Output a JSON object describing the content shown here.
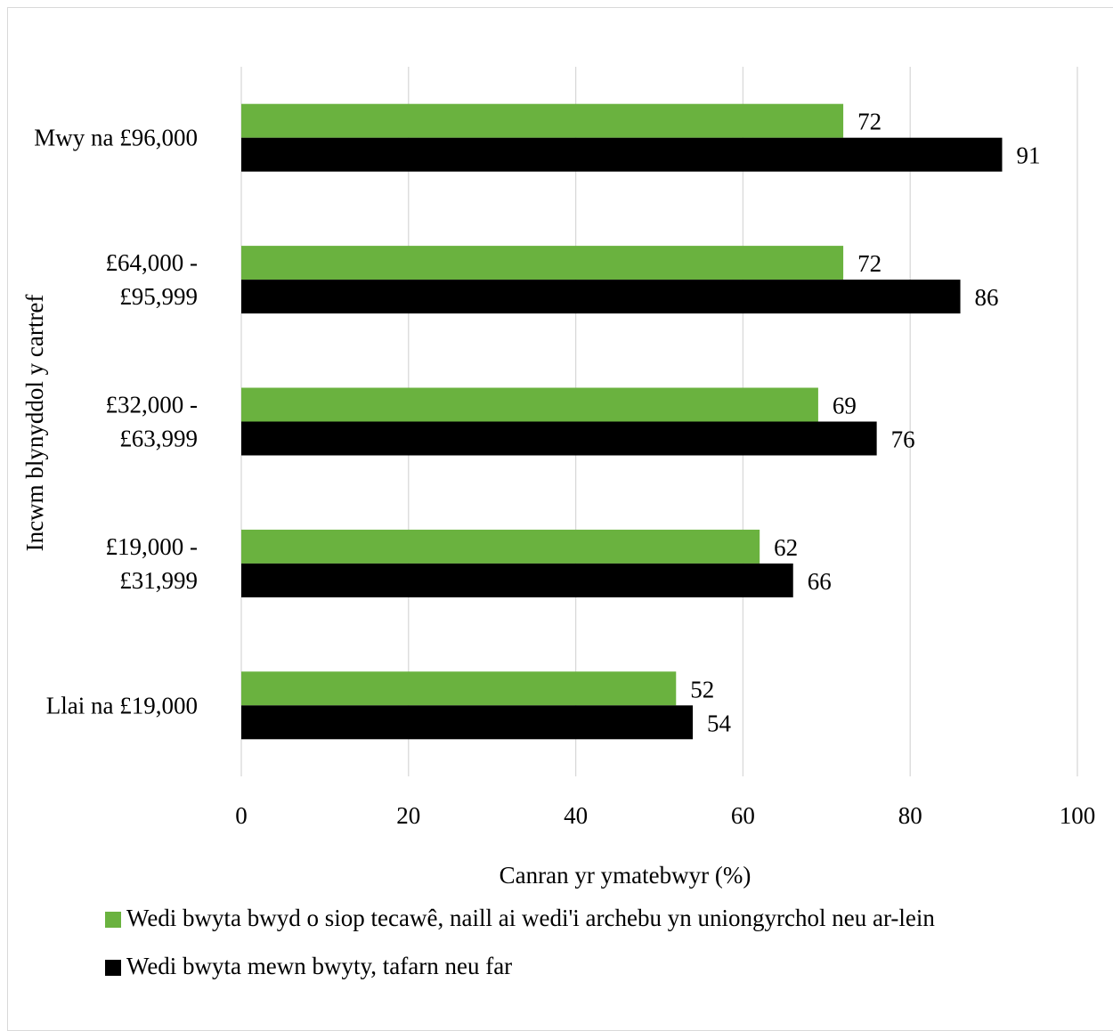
{
  "chart_data": {
    "type": "bar",
    "orientation": "horizontal",
    "categories": [
      "Mwy na £96,000",
      "£64,000 - £95,999",
      "£32,000 - £63,999",
      "£19,000 - £31,999",
      "Llai na £19,000"
    ],
    "category_lines": [
      [
        "Mwy na £96,000"
      ],
      [
        "£64,000 -",
        "£95,999"
      ],
      [
        "£32,000 -",
        "£63,999"
      ],
      [
        "£19,000 -",
        "£31,999"
      ],
      [
        "Llai na £19,000"
      ]
    ],
    "series": [
      {
        "name": "Wedi bwyta bwyd o siop tecawê, naill ai wedi'i archebu yn uniongyrchol neu ar-lein",
        "color": "#6ab23f",
        "values": [
          72,
          72,
          69,
          62,
          52
        ]
      },
      {
        "name": "Wedi bwyta mewn bwyty, tafarn neu far",
        "color": "#000000",
        "values": [
          91,
          86,
          76,
          66,
          54
        ]
      }
    ],
    "xlabel": "Canran yr ymatebwyr (%)",
    "ylabel": "Incwm blynyddol y cartref",
    "xlim": [
      0,
      100
    ],
    "xticks": [
      0,
      20,
      40,
      60,
      80,
      100
    ],
    "grid": true,
    "legend_position": "bottom"
  }
}
